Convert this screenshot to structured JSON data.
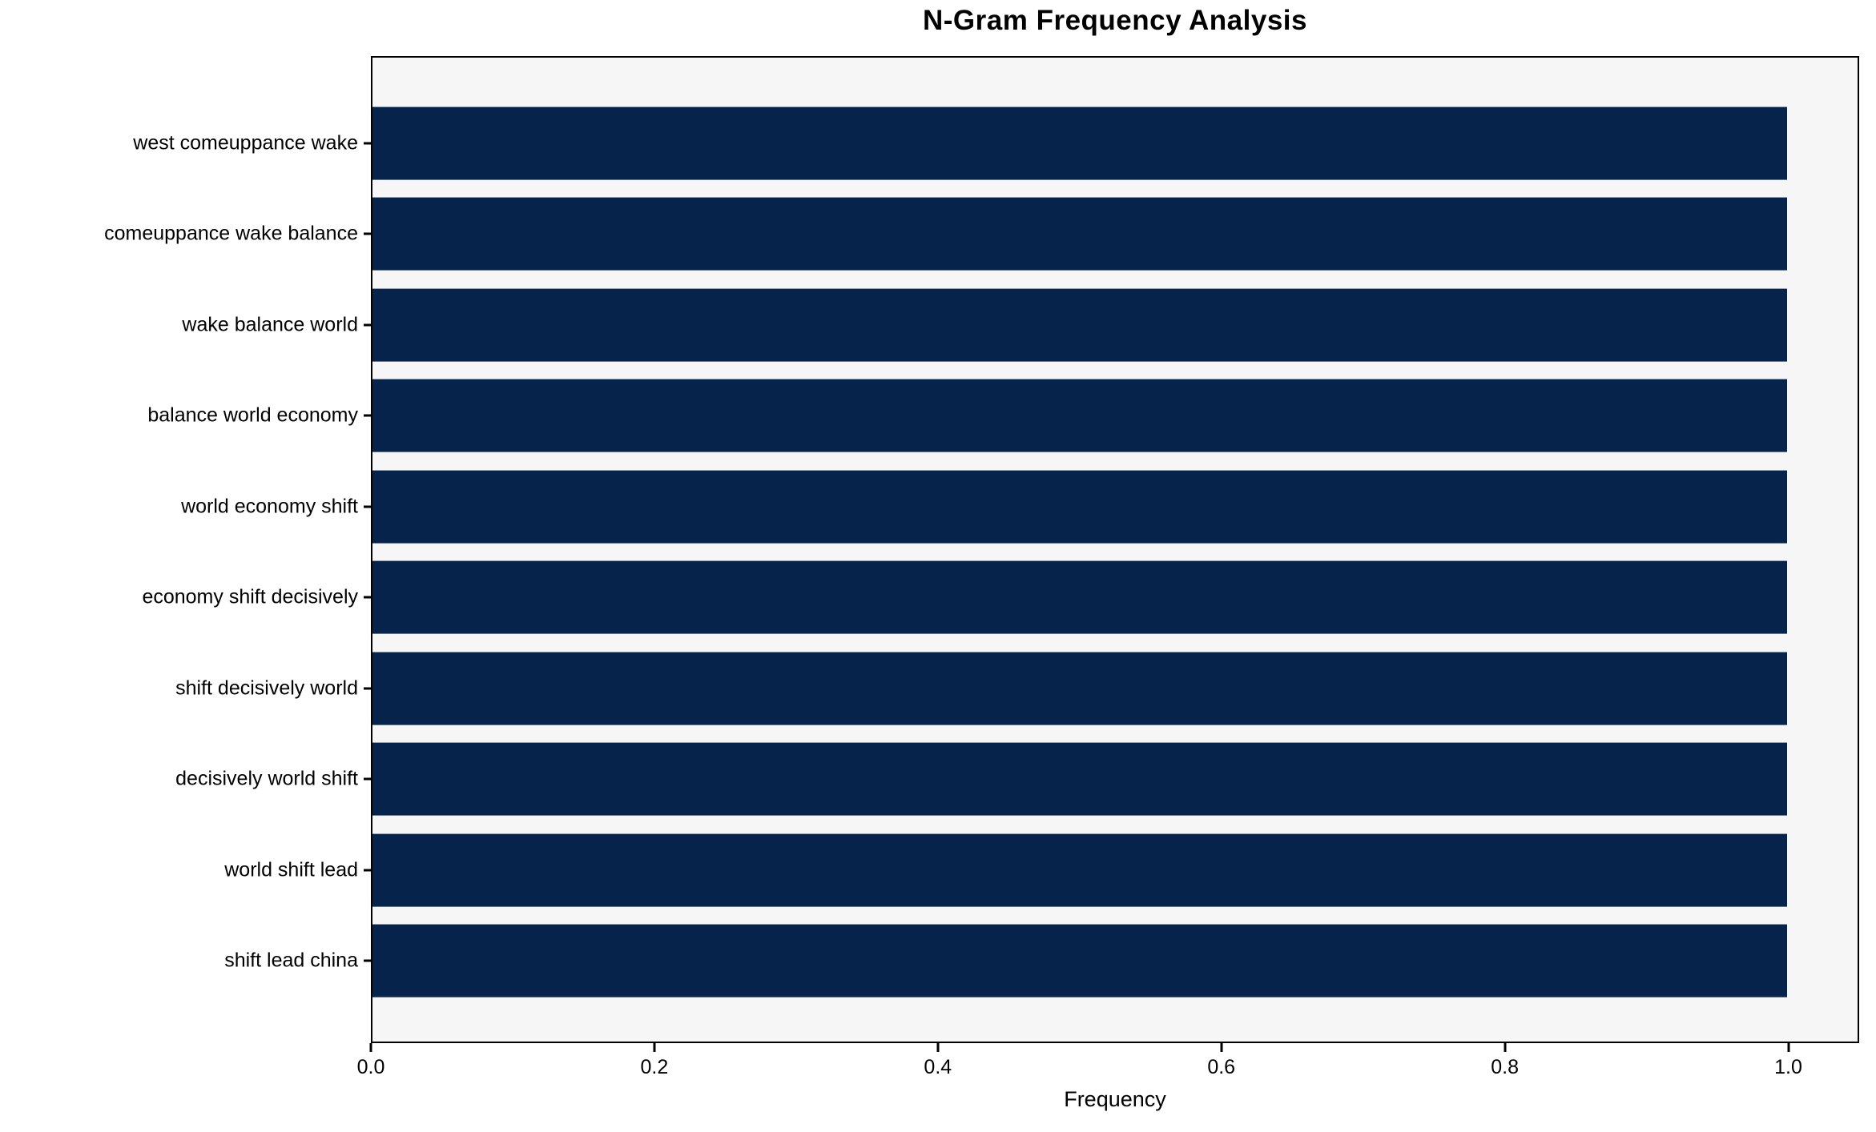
{
  "title": "N-Gram Frequency Analysis",
  "colors": {
    "bar": "#05234b",
    "plot_background": "#f6f6f6",
    "figure_background": "#ffffff",
    "spine": "#000000",
    "text": "#000000"
  },
  "chart_data": {
    "type": "bar",
    "orientation": "horizontal",
    "title": "N-Gram Frequency Analysis",
    "xlabel": "Frequency",
    "ylabel": "",
    "categories": [
      "west comeuppance wake",
      "comeuppance wake balance",
      "wake balance world",
      "balance world economy",
      "world economy shift",
      "economy shift decisively",
      "shift decisively world",
      "decisively world shift",
      "world shift lead",
      "shift lead china"
    ],
    "values": [
      1.0,
      1.0,
      1.0,
      1.0,
      1.0,
      1.0,
      1.0,
      1.0,
      1.0,
      1.0
    ],
    "xlim": [
      0,
      1.05
    ],
    "xticks": [
      0.0,
      0.2,
      0.4,
      0.6,
      0.8,
      1.0
    ],
    "xtick_labels": [
      "0.0",
      "0.2",
      "0.4",
      "0.6",
      "0.8",
      "1.0"
    ],
    "grid": false,
    "legend": null,
    "bar_height_fraction": 0.8
  }
}
